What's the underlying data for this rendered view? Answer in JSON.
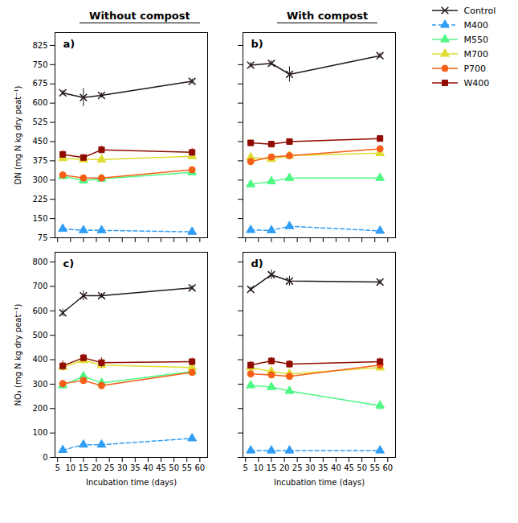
{
  "chart_data": [
    {
      "type": "line",
      "title": "Without compost",
      "annotations": [
        "a)"
      ],
      "y_label": "DN (mg N kg dry peat⁻¹)",
      "x": [
        7,
        15,
        22,
        57
      ],
      "series": [
        {
          "name": "Control",
          "marker": "x",
          "line_style": "solid",
          "values": [
            640,
            622,
            630,
            685
          ],
          "yerr": [
            10,
            35,
            10,
            10
          ]
        },
        {
          "name": "M400",
          "marker": "triangle",
          "line_style": "dashed",
          "values": [
            110,
            104,
            104,
            98
          ],
          "yerr": [
            5,
            5,
            5,
            5
          ]
        },
        {
          "name": "M550",
          "marker": "triangle",
          "line_style": "solid",
          "values": [
            315,
            298,
            305,
            330
          ],
          "yerr": [
            10,
            10,
            10,
            10
          ]
        },
        {
          "name": "M700",
          "marker": "triangle",
          "line_style": "solid",
          "values": [
            385,
            380,
            380,
            393
          ],
          "yerr": [
            10,
            10,
            10,
            10
          ]
        },
        {
          "name": "P700",
          "marker": "circle",
          "line_style": "solid",
          "values": [
            320,
            308,
            308,
            340
          ],
          "yerr": [
            10,
            10,
            10,
            10
          ]
        },
        {
          "name": "W400",
          "marker": "square",
          "line_style": "solid",
          "values": [
            400,
            388,
            418,
            408
          ],
          "yerr": [
            15,
            10,
            15,
            15
          ]
        }
      ],
      "xlim": [
        4,
        63
      ],
      "xticks": [
        5,
        10,
        15,
        20,
        25,
        30,
        35,
        40,
        45,
        50,
        55,
        60
      ],
      "ylim": [
        75,
        875
      ],
      "yticks": [
        75,
        150,
        225,
        300,
        375,
        450,
        525,
        600,
        675,
        750,
        825
      ],
      "tick_labels": "y"
    },
    {
      "type": "line",
      "title": "With compost",
      "annotations": [
        "b)"
      ],
      "x": [
        7,
        15,
        22,
        57
      ],
      "series": [
        {
          "name": "Control",
          "marker": "x",
          "line_style": "solid",
          "values": [
            748,
            755,
            712,
            785
          ],
          "yerr": [
            10,
            10,
            30,
            10
          ]
        },
        {
          "name": "M400",
          "marker": "triangle",
          "line_style": "dashed",
          "values": [
            105,
            104,
            120,
            102
          ],
          "yerr": [
            5,
            5,
            10,
            5
          ]
        },
        {
          "name": "M550",
          "marker": "triangle",
          "line_style": "solid",
          "values": [
            283,
            295,
            308,
            308
          ],
          "yerr": [
            10,
            10,
            15,
            10
          ]
        },
        {
          "name": "M700",
          "marker": "triangle",
          "line_style": "solid",
          "values": [
            388,
            382,
            395,
            405
          ],
          "yerr": [
            10,
            10,
            10,
            10
          ]
        },
        {
          "name": "P700",
          "marker": "circle",
          "line_style": "solid",
          "values": [
            372,
            390,
            395,
            422
          ],
          "yerr": [
            15,
            10,
            10,
            10
          ]
        },
        {
          "name": "W400",
          "marker": "square",
          "line_style": "solid",
          "values": [
            445,
            440,
            450,
            462
          ],
          "yerr": [
            10,
            10,
            10,
            10
          ]
        }
      ],
      "xlim": [
        4,
        63
      ],
      "xticks": [
        5,
        10,
        15,
        20,
        25,
        30,
        35,
        40,
        45,
        50,
        55,
        60
      ],
      "ylim": [
        75,
        875
      ],
      "yticks": [
        75,
        150,
        225,
        300,
        375,
        450,
        525,
        600,
        675,
        750,
        825
      ],
      "tick_labels": false,
      "legend": "upper right"
    },
    {
      "type": "line",
      "annotations": [
        "c)"
      ],
      "x_label": "Incubation time (days)",
      "y_label": "NO₃ (mg N kg dry peat⁻¹)",
      "x": [
        7,
        15,
        22,
        57
      ],
      "series": [
        {
          "name": "Control",
          "marker": "x",
          "line_style": "solid",
          "values": [
            592,
            662,
            662,
            694
          ],
          "yerr": [
            15,
            20,
            10,
            10
          ]
        },
        {
          "name": "M400",
          "marker": "triangle",
          "line_style": "dashed",
          "values": [
            30,
            52,
            52,
            78
          ],
          "yerr": [
            5,
            5,
            5,
            10
          ]
        },
        {
          "name": "M550",
          "marker": "triangle",
          "line_style": "solid",
          "values": [
            295,
            332,
            305,
            352
          ],
          "yerr": [
            15,
            15,
            15,
            15
          ]
        },
        {
          "name": "M700",
          "marker": "triangle",
          "line_style": "solid",
          "values": [
            370,
            398,
            378,
            368
          ],
          "yerr": [
            15,
            15,
            15,
            15
          ]
        },
        {
          "name": "P700",
          "marker": "circle",
          "line_style": "solid",
          "values": [
            302,
            315,
            294,
            348
          ],
          "yerr": [
            15,
            15,
            15,
            15
          ]
        },
        {
          "name": "W400",
          "marker": "square",
          "line_style": "solid",
          "values": [
            375,
            408,
            388,
            392
          ],
          "yerr": [
            20,
            15,
            20,
            15
          ]
        }
      ],
      "xlim": [
        4,
        63
      ],
      "xticks": [
        5,
        10,
        15,
        20,
        25,
        30,
        35,
        40,
        45,
        50,
        55,
        60
      ],
      "ylim": [
        0,
        840
      ],
      "yticks": [
        0,
        100,
        200,
        300,
        400,
        500,
        600,
        700,
        800
      ]
    },
    {
      "type": "line",
      "annotations": [
        "d)"
      ],
      "x_label": "Incubation time (days)",
      "x": [
        7,
        15,
        22,
        57
      ],
      "series": [
        {
          "name": "Control",
          "marker": "x",
          "line_style": "solid",
          "values": [
            688,
            748,
            722,
            718
          ],
          "yerr": [
            10,
            20,
            20,
            10
          ]
        },
        {
          "name": "M400",
          "marker": "triangle",
          "line_style": "dashed",
          "values": [
            28,
            28,
            28,
            28
          ],
          "yerr": [
            5,
            5,
            5,
            5
          ]
        },
        {
          "name": "M550",
          "marker": "triangle",
          "line_style": "solid",
          "values": [
            295,
            288,
            272,
            212
          ],
          "yerr": [
            15,
            10,
            10,
            20
          ]
        },
        {
          "name": "M700",
          "marker": "triangle",
          "line_style": "solid",
          "values": [
            368,
            352,
            342,
            368
          ],
          "yerr": [
            15,
            15,
            15,
            15
          ]
        },
        {
          "name": "P700",
          "marker": "circle",
          "line_style": "solid",
          "values": [
            342,
            338,
            332,
            378
          ],
          "yerr": [
            15,
            15,
            15,
            15
          ]
        },
        {
          "name": "W400",
          "marker": "square",
          "line_style": "solid",
          "values": [
            378,
            395,
            382,
            392
          ],
          "yerr": [
            15,
            15,
            15,
            15
          ]
        }
      ],
      "xlim": [
        4,
        63
      ],
      "xticks": [
        5,
        10,
        15,
        20,
        25,
        30,
        35,
        40,
        45,
        50,
        55,
        60
      ],
      "ylim": [
        0,
        840
      ],
      "yticks": [
        0,
        100,
        200,
        300,
        400,
        500,
        600,
        700,
        800
      ],
      "tick_labels": "x"
    }
  ]
}
